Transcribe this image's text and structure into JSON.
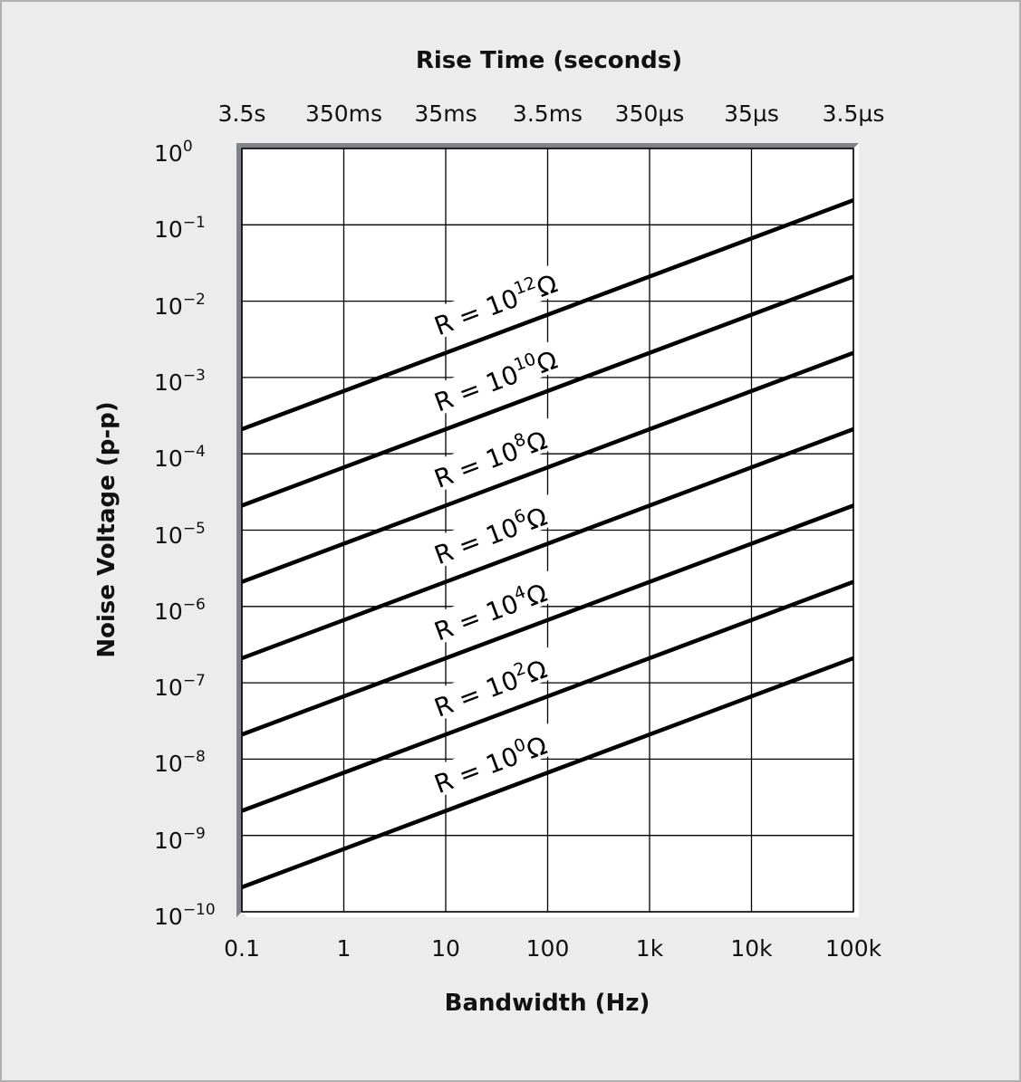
{
  "chart_data": {
    "type": "line",
    "title": "Rise Time (seconds)",
    "xlabel": "Bandwidth (Hz)",
    "ylabel": "Noise Voltage (p-p)",
    "xscale": "log",
    "yscale": "log",
    "xlim": [
      0.1,
      100000
    ],
    "ylim": [
      1e-10,
      1
    ],
    "grid": true,
    "x_ticks": [
      "0.1",
      "1",
      "10",
      "100",
      "1k",
      "10k",
      "100k"
    ],
    "x_tick_values": [
      0.1,
      1,
      10,
      100,
      1000,
      10000,
      100000
    ],
    "top_axis_ticks": [
      "3.5s",
      "350ms",
      "35ms",
      "3.5ms",
      "350µs",
      "35µs",
      "3.5µs"
    ],
    "y_ticks": [
      {
        "base": "10",
        "exp": "0"
      },
      {
        "base": "10",
        "exp": "−1"
      },
      {
        "base": "10",
        "exp": "−2"
      },
      {
        "base": "10",
        "exp": "−3"
      },
      {
        "base": "10",
        "exp": "−4"
      },
      {
        "base": "10",
        "exp": "−5"
      },
      {
        "base": "10",
        "exp": "−6"
      },
      {
        "base": "10",
        "exp": "−7"
      },
      {
        "base": "10",
        "exp": "−8"
      },
      {
        "base": "10",
        "exp": "−9"
      },
      {
        "base": "10",
        "exp": "−10"
      }
    ],
    "x": [
      0.1,
      100000
    ],
    "series": [
      {
        "name": "R = 10^12 Ω",
        "label_base": "R = 10",
        "label_exp": "12",
        "label_unit": "Ω",
        "values": [
          0.00021,
          0.21
        ]
      },
      {
        "name": "R = 10^10 Ω",
        "label_base": "R = 10",
        "label_exp": "10",
        "label_unit": "Ω",
        "values": [
          2.1e-05,
          0.021
        ]
      },
      {
        "name": "R = 10^8 Ω",
        "label_base": "R = 10",
        "label_exp": "8",
        "label_unit": "Ω",
        "values": [
          2.1e-06,
          0.0021
        ]
      },
      {
        "name": "R = 10^6 Ω",
        "label_base": "R = 10",
        "label_exp": "6",
        "label_unit": "Ω",
        "values": [
          2.1e-07,
          0.00021
        ]
      },
      {
        "name": "R = 10^4 Ω",
        "label_base": "R = 10",
        "label_exp": "4",
        "label_unit": "Ω",
        "values": [
          2.1e-08,
          2.1e-05
        ]
      },
      {
        "name": "R = 10^2 Ω",
        "label_base": "R = 10",
        "label_exp": "2",
        "label_unit": "Ω",
        "values": [
          2.1e-09,
          2.1e-06
        ]
      },
      {
        "name": "R = 10^0 Ω",
        "label_base": "R = 10",
        "label_exp": "0",
        "label_unit": "Ω",
        "values": [
          2.1e-10,
          2.1e-07
        ]
      }
    ]
  },
  "colors": {
    "background": "#ececec",
    "plot_background": "#ffffff",
    "line": "#000000",
    "axis_bar": "#808285"
  }
}
